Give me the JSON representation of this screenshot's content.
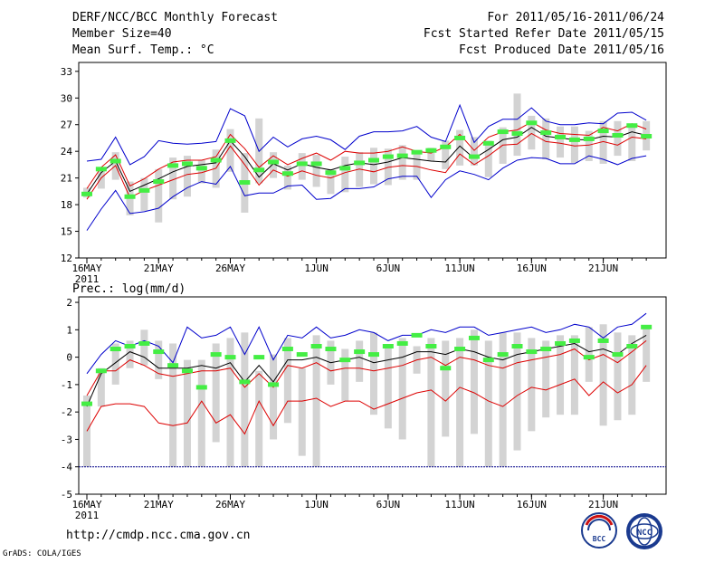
{
  "header": {
    "title": "DERF/NCC/BCC Monthly Forecast",
    "member_size": "Member Size=40",
    "variable": "Mean Surf. Temp.: °C",
    "period": "For 2011/05/16-2011/06/24",
    "started": "Fcst Started Refer Date 2011/05/15",
    "produced": "Fcst Produced Date 2011/05/16"
  },
  "footer": {
    "url": "http://cmdp.ncc.cma.gov.cn",
    "credit": "GrADS: COLA/IGES",
    "logo_bcc_text": "BCC",
    "logo_ncc_text": "NCC"
  },
  "colors": {
    "bar": "#d3d3d3",
    "ensemble_mean": "#000000",
    "percentile_band": "#dd0000",
    "extreme_band": "#0000cc",
    "marker": "#44ee44",
    "reference_line": "#000088"
  },
  "chart_data": [
    {
      "type": "line",
      "panel": "temperature",
      "title": "Mean Surf. Temp.: °C",
      "ylim": [
        12,
        34
      ],
      "yticks": [
        12,
        15,
        18,
        21,
        24,
        27,
        30,
        33
      ],
      "x_days": 40,
      "xtick_labels": [
        {
          "day": 1,
          "label": "16MAY"
        },
        {
          "day": 6,
          "label": "21MAY"
        },
        {
          "day": 11,
          "label": "26MAY"
        },
        {
          "day": 17,
          "label": "1JUN"
        },
        {
          "day": 22,
          "label": "6JUN"
        },
        {
          "day": 27,
          "label": "11JUN"
        },
        {
          "day": 32,
          "label": "16JUN"
        },
        {
          "day": 37,
          "label": "21JUN"
        }
      ],
      "year_label": "2011",
      "series": [
        {
          "name": "mean",
          "values": [
            19.2,
            21.6,
            22.9,
            19.5,
            20.2,
            20.9,
            21.7,
            22.3,
            22.5,
            22.7,
            25.2,
            23.4,
            21.1,
            22.6,
            21.9,
            22.6,
            22.2,
            21.9,
            22.4,
            22.7,
            22.5,
            22.8,
            23.3,
            23.1,
            22.9,
            22.8,
            24.6,
            23.2,
            24.2,
            25.3,
            25.6,
            26.7,
            25.7,
            25.5,
            25.3,
            25.3,
            25.7,
            25.6,
            26.2,
            25.8
          ]
        },
        {
          "name": "upper-red",
          "values": [
            19.8,
            22.2,
            23.6,
            20.1,
            20.9,
            22.0,
            22.8,
            23.0,
            23.0,
            23.4,
            25.9,
            24.3,
            22.2,
            23.5,
            22.5,
            23.2,
            23.8,
            23.0,
            24.0,
            23.8,
            23.8,
            24.0,
            24.5,
            24.0,
            23.8,
            24.5,
            25.9,
            24.1,
            25.6,
            26.2,
            26.4,
            27.3,
            26.4,
            26.0,
            25.9,
            25.8,
            26.7,
            26.3,
            27.1,
            26.5
          ]
        },
        {
          "name": "lower-red",
          "values": [
            18.6,
            21.0,
            22.4,
            18.8,
            19.6,
            20.2,
            20.8,
            21.4,
            21.6,
            22.1,
            24.6,
            22.5,
            20.2,
            21.9,
            21.2,
            21.8,
            21.3,
            21.0,
            21.6,
            22.0,
            21.7,
            22.2,
            22.4,
            22.3,
            21.9,
            21.6,
            23.7,
            22.5,
            23.5,
            24.7,
            24.8,
            26.0,
            25.1,
            24.9,
            24.6,
            24.7,
            25.1,
            24.7,
            25.6,
            25.4
          ]
        },
        {
          "name": "upper-blue",
          "values": [
            22.9,
            23.1,
            25.6,
            22.5,
            23.4,
            25.2,
            24.9,
            24.8,
            24.9,
            25.1,
            28.8,
            28.0,
            24.0,
            25.6,
            24.5,
            25.4,
            25.7,
            25.3,
            24.2,
            25.7,
            26.2,
            26.2,
            26.3,
            26.8,
            25.6,
            25.1,
            29.2,
            25.0,
            26.8,
            27.6,
            27.6,
            28.9,
            27.4,
            27.0,
            27.0,
            27.2,
            27.1,
            28.3,
            28.4,
            27.5
          ]
        },
        {
          "name": "lower-blue",
          "values": [
            15.1,
            17.5,
            19.6,
            17.0,
            17.2,
            17.6,
            18.9,
            19.9,
            20.6,
            20.3,
            22.3,
            19.0,
            19.3,
            19.3,
            20.1,
            20.2,
            18.6,
            18.7,
            19.8,
            19.8,
            20.0,
            20.9,
            21.2,
            21.2,
            18.8,
            20.8,
            21.8,
            21.4,
            20.8,
            22.1,
            23.0,
            23.3,
            23.2,
            22.6,
            22.6,
            23.5,
            23.1,
            22.5,
            23.2,
            23.5
          ]
        },
        {
          "name": "bar-top",
          "values": [
            19.9,
            21.8,
            23.9,
            20.6,
            21.0,
            22.0,
            23.3,
            23.5,
            23.0,
            24.2,
            26.5,
            23.8,
            27.7,
            23.9,
            22.4,
            23.8,
            23.6,
            22.0,
            23.4,
            23.9,
            24.4,
            24.3,
            24.7,
            24.0,
            24.4,
            25.2,
            26.4,
            25.6,
            25.2,
            26.7,
            30.5,
            28.0,
            27.7,
            26.8,
            26.8,
            26.3,
            27.4,
            27.4,
            26.8,
            27.4
          ]
        },
        {
          "name": "bar-bottom",
          "values": [
            18.8,
            19.8,
            20.8,
            16.8,
            17.3,
            16.0,
            18.6,
            18.9,
            20.4,
            19.9,
            21.7,
            17.1,
            20.4,
            21.0,
            19.7,
            20.8,
            20.0,
            19.2,
            19.4,
            20.0,
            20.3,
            20.2,
            20.8,
            20.8,
            22.9,
            22.0,
            22.4,
            22.4,
            21.1,
            22.6,
            23.5,
            24.2,
            23.1,
            23.3,
            22.7,
            22.9,
            22.6,
            23.5,
            22.9,
            24.1
          ]
        },
        {
          "name": "marker",
          "values": [
            19.2,
            22.0,
            22.9,
            18.9,
            19.6,
            20.6,
            22.4,
            22.6,
            22.1,
            23.0,
            25.2,
            20.5,
            21.9,
            22.8,
            21.5,
            22.6,
            22.6,
            21.6,
            22.1,
            22.7,
            23.0,
            23.4,
            23.5,
            23.9,
            24.1,
            24.5,
            25.5,
            23.4,
            24.9,
            26.2,
            26.0,
            27.2,
            26.1,
            25.6,
            25.3,
            25.4,
            26.3,
            25.8,
            26.9,
            25.7
          ]
        }
      ]
    },
    {
      "type": "line",
      "panel": "precipitation",
      "title": "Prec.: log(mm/d)",
      "ylim": [
        -5,
        2.2
      ],
      "yticks": [
        -5,
        -4,
        -3,
        -2,
        -1,
        0,
        1,
        2
      ],
      "reference_value": -4,
      "x_days": 40,
      "xtick_labels": [
        {
          "day": 1,
          "label": "16MAY"
        },
        {
          "day": 6,
          "label": "21MAY"
        },
        {
          "day": 11,
          "label": "26MAY"
        },
        {
          "day": 17,
          "label": "1JUN"
        },
        {
          "day": 22,
          "label": "6JUN"
        },
        {
          "day": 27,
          "label": "11JUN"
        },
        {
          "day": 32,
          "label": "16JUN"
        },
        {
          "day": 37,
          "label": "21JUN"
        }
      ],
      "year_label": "2011",
      "series": [
        {
          "name": "mean",
          "values": [
            -1.8,
            -0.6,
            -0.2,
            0.2,
            0.0,
            -0.4,
            -0.4,
            -0.4,
            -0.3,
            -0.4,
            -0.2,
            -0.9,
            -0.3,
            -0.9,
            -0.1,
            -0.1,
            0.0,
            -0.2,
            -0.1,
            0.0,
            -0.2,
            -0.1,
            0.0,
            0.2,
            0.2,
            0.1,
            0.3,
            0.2,
            0.0,
            -0.1,
            0.1,
            0.2,
            0.3,
            0.4,
            0.5,
            0.2,
            0.3,
            0.1,
            0.5,
            0.8
          ]
        },
        {
          "name": "upper-red",
          "values": [
            -1.4,
            -0.5,
            -0.5,
            -0.1,
            -0.3,
            -0.6,
            -0.7,
            -0.6,
            -0.5,
            -0.5,
            -0.4,
            -1.1,
            -0.6,
            -1.1,
            -0.3,
            -0.4,
            -0.2,
            -0.5,
            -0.4,
            -0.4,
            -0.5,
            -0.4,
            -0.3,
            -0.1,
            0.0,
            -0.3,
            0.0,
            -0.1,
            -0.3,
            -0.4,
            -0.2,
            -0.1,
            0.0,
            0.1,
            0.3,
            -0.1,
            0.1,
            -0.2,
            0.2,
            0.6
          ]
        },
        {
          "name": "lower-red",
          "values": [
            -2.7,
            -1.8,
            -1.7,
            -1.7,
            -1.8,
            -2.4,
            -2.5,
            -2.4,
            -1.6,
            -2.4,
            -2.1,
            -2.8,
            -1.6,
            -2.5,
            -1.6,
            -1.6,
            -1.5,
            -1.8,
            -1.6,
            -1.6,
            -1.9,
            -1.7,
            -1.5,
            -1.3,
            -1.2,
            -1.6,
            -1.1,
            -1.3,
            -1.6,
            -1.8,
            -1.4,
            -1.1,
            -1.2,
            -1.0,
            -0.8,
            -1.4,
            -0.9,
            -1.3,
            -1.0,
            -0.3
          ]
        },
        {
          "name": "upper-blue",
          "values": [
            -0.6,
            0.1,
            0.6,
            0.4,
            0.6,
            0.4,
            -0.2,
            1.1,
            0.7,
            0.8,
            1.1,
            0.1,
            1.1,
            -0.1,
            0.8,
            0.7,
            1.1,
            0.7,
            0.8,
            1.0,
            0.9,
            0.6,
            0.8,
            0.8,
            1.0,
            0.9,
            1.1,
            1.1,
            0.8,
            0.9,
            1.0,
            1.1,
            0.9,
            1.0,
            1.2,
            1.1,
            0.7,
            1.1,
            1.2,
            1.6
          ]
        },
        {
          "name": "bar-top",
          "values": [
            -1.4,
            -0.4,
            0.5,
            0.6,
            1.0,
            0.6,
            0.5,
            -0.1,
            -0.1,
            0.5,
            0.7,
            0.9,
            -0.5,
            0.1,
            0.7,
            -0.4,
            0.8,
            0.6,
            0.3,
            0.6,
            0.9,
            0.4,
            0.7,
            0.4,
            0.7,
            0.6,
            0.7,
            1.0,
            0.6,
            0.9,
            0.9,
            0.7,
            0.6,
            0.8,
            0.8,
            1.1,
            1.2,
            0.9,
            0.8,
            1.1
          ]
        },
        {
          "name": "bar-bottom",
          "values": [
            -4.0,
            -1.8,
            -1.0,
            -0.4,
            -0.3,
            -0.8,
            -4.0,
            -4.0,
            -4.0,
            -3.1,
            -4.0,
            -4.0,
            -4.0,
            -3.0,
            -2.4,
            -3.6,
            -4.0,
            -1.0,
            -1.6,
            -0.9,
            -2.1,
            -2.6,
            -3.0,
            -0.6,
            -4.0,
            -2.9,
            -4.0,
            -2.8,
            -4.0,
            -4.0,
            -3.4,
            -2.7,
            -2.2,
            -2.1,
            -2.1,
            -0.9,
            -2.5,
            -2.3,
            -2.1,
            -0.9
          ]
        },
        {
          "name": "marker",
          "values": [
            -1.7,
            -0.5,
            0.3,
            0.4,
            0.5,
            0.2,
            -0.3,
            -0.5,
            -1.1,
            0.1,
            0.0,
            -0.9,
            0.0,
            -1.0,
            0.3,
            0.1,
            0.4,
            0.3,
            -0.1,
            0.2,
            0.1,
            0.4,
            0.5,
            0.8,
            0.4,
            -0.4,
            0.3,
            0.7,
            -0.1,
            0.1,
            0.4,
            0.2,
            0.3,
            0.5,
            0.6,
            0.0,
            0.6,
            0.1,
            0.4,
            1.1
          ]
        }
      ]
    }
  ]
}
